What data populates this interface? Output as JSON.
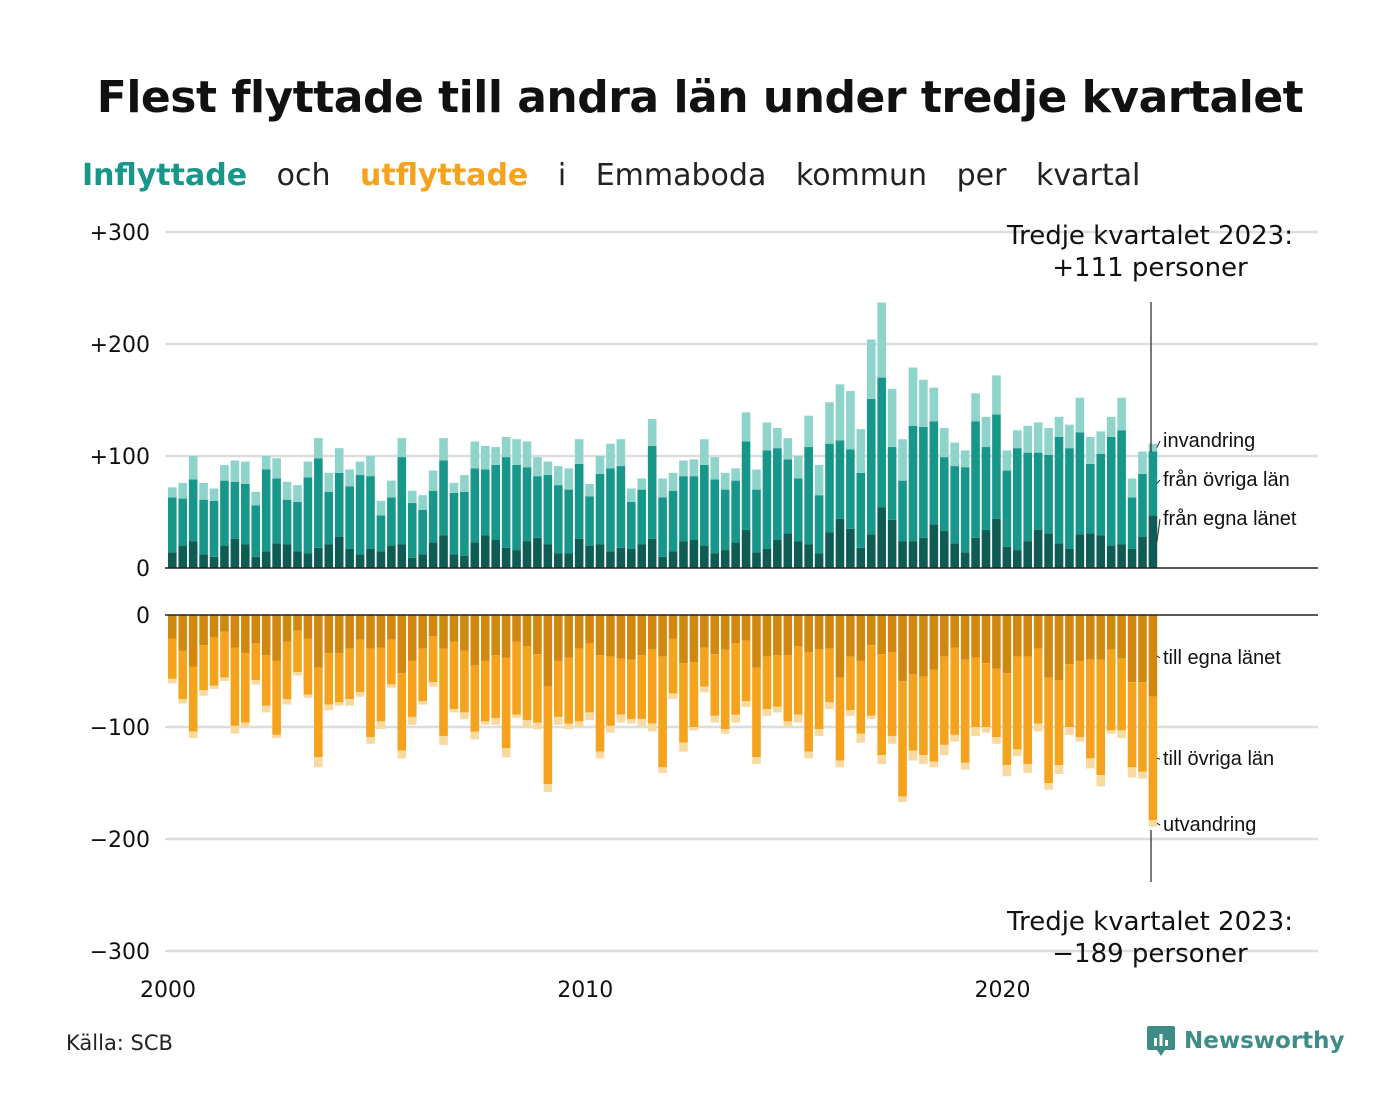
{
  "title": "Flest flyttade till andra län under tredje kvartalet",
  "subtitle": {
    "inflyttade": "Inflyttade",
    "och": "och",
    "utflyttade": "utflyttade",
    "rest": [
      "i",
      "Emmaboda",
      "kommun",
      "per",
      "kvartal"
    ]
  },
  "source": "Källa: SCB",
  "brand": "Newsworthy",
  "colors": {
    "in_egna": "#0f5c55",
    "in_ovriga": "#16978a",
    "in_invandring": "#8fd4cb",
    "out_egna": "#d08811",
    "out_ovriga": "#f5a31c",
    "out_utvandring": "#f8d9a0",
    "grid": "#dddddd",
    "brand": "#3e8c86"
  },
  "chart_data": {
    "type": "bar",
    "stacked": true,
    "x_axis": {
      "label": "",
      "ticks": [
        "2000",
        "2010",
        "2020"
      ],
      "range": [
        "2000 Q1",
        "2023 Q3"
      ]
    },
    "y_axis_top": {
      "label": "",
      "ticks": [
        "+300",
        "+200",
        "+100",
        "0"
      ],
      "ylim": [
        0,
        300
      ]
    },
    "y_axis_bottom": {
      "label": "",
      "ticks": [
        "0",
        "−100",
        "−200",
        "−300"
      ],
      "ylim": [
        -300,
        0
      ]
    },
    "grid": true,
    "annotations": {
      "top": [
        "Tredje kvartalet 2023:",
        "+111 personer"
      ],
      "bottom": [
        "Tredje kvartalet 2023:",
        "−189 personer"
      ]
    },
    "in_labels": [
      "invandring",
      "från övriga län",
      "från egna länet"
    ],
    "out_labels": [
      "till egna länet",
      "till övriga län",
      "utvandring"
    ],
    "periods": [
      "2000 Q1",
      "2000 Q2",
      "2000 Q3",
      "2000 Q4",
      "2001 Q1",
      "2001 Q2",
      "2001 Q3",
      "2001 Q4",
      "2002 Q1",
      "2002 Q2",
      "2002 Q3",
      "2002 Q4",
      "2003 Q1",
      "2003 Q2",
      "2003 Q3",
      "2003 Q4",
      "2004 Q1",
      "2004 Q2",
      "2004 Q3",
      "2004 Q4",
      "2005 Q1",
      "2005 Q2",
      "2005 Q3",
      "2005 Q4",
      "2006 Q1",
      "2006 Q2",
      "2006 Q3",
      "2006 Q4",
      "2007 Q1",
      "2007 Q2",
      "2007 Q3",
      "2007 Q4",
      "2008 Q1",
      "2008 Q2",
      "2008 Q3",
      "2008 Q4",
      "2009 Q1",
      "2009 Q2",
      "2009 Q3",
      "2009 Q4",
      "2010 Q1",
      "2010 Q2",
      "2010 Q3",
      "2010 Q4",
      "2011 Q1",
      "2011 Q2",
      "2011 Q3",
      "2011 Q4",
      "2012 Q1",
      "2012 Q2",
      "2012 Q3",
      "2012 Q4",
      "2013 Q1",
      "2013 Q2",
      "2013 Q3",
      "2013 Q4",
      "2014 Q1",
      "2014 Q2",
      "2014 Q3",
      "2014 Q4",
      "2015 Q1",
      "2015 Q2",
      "2015 Q3",
      "2015 Q4",
      "2016 Q1",
      "2016 Q2",
      "2016 Q3",
      "2016 Q4",
      "2017 Q1",
      "2017 Q2",
      "2017 Q3",
      "2017 Q4",
      "2018 Q1",
      "2018 Q2",
      "2018 Q3",
      "2018 Q4",
      "2019 Q1",
      "2019 Q2",
      "2019 Q3",
      "2019 Q4",
      "2020 Q1",
      "2020 Q2",
      "2020 Q3",
      "2020 Q4",
      "2021 Q1",
      "2021 Q2",
      "2021 Q3",
      "2021 Q4",
      "2022 Q1",
      "2022 Q2",
      "2022 Q3",
      "2022 Q4",
      "2023 Q1",
      "2023 Q2",
      "2023 Q3"
    ],
    "inflyttade_totals": [
      72,
      76,
      100,
      76,
      71,
      92,
      96,
      95,
      68,
      100,
      98,
      77,
      74,
      95,
      116,
      85,
      107,
      88,
      95,
      100,
      60,
      78,
      116,
      69,
      65,
      87,
      116,
      76,
      83,
      113,
      109,
      108,
      117,
      115,
      113,
      99,
      95,
      91,
      89,
      115,
      75,
      100,
      111,
      115,
      71,
      80,
      133,
      80,
      85,
      96,
      97,
      115,
      99,
      85,
      89,
      139,
      88,
      130,
      125,
      116,
      100,
      136,
      92,
      148,
      164,
      158,
      124,
      204,
      237,
      160,
      115,
      179,
      168,
      161,
      125,
      112,
      105,
      156,
      135,
      172,
      105,
      123,
      127,
      130,
      125,
      135,
      128,
      152,
      117,
      122,
      135,
      152,
      80,
      104,
      111
    ],
    "utflyttade_totals": [
      -61,
      -79,
      -110,
      -72,
      -66,
      -59,
      -106,
      -100,
      -62,
      -87,
      -110,
      -80,
      -54,
      -74,
      -136,
      -85,
      -81,
      -81,
      -73,
      -115,
      -102,
      -65,
      -128,
      -98,
      -80,
      -64,
      -116,
      -87,
      -93,
      -111,
      -98,
      -98,
      -127,
      -92,
      -101,
      -102,
      -158,
      -98,
      -102,
      -100,
      -94,
      -128,
      -105,
      -96,
      -97,
      -99,
      -104,
      -141,
      -75,
      -122,
      -103,
      -69,
      -96,
      -106,
      -96,
      -82,
      -133,
      -90,
      -87,
      -100,
      -96,
      -128,
      -108,
      -84,
      -136,
      -90,
      -114,
      -93,
      -133,
      -115,
      -167,
      -130,
      -133,
      -136,
      -125,
      -113,
      -138,
      -108,
      -105,
      -115,
      -144,
      -126,
      -141,
      -104,
      -156,
      -142,
      -107,
      -113,
      -137,
      -153,
      -106,
      -110,
      -145,
      -146,
      -189
    ],
    "highlight": {
      "period": "2023 Q3",
      "in": {
        "från egna länet": 47,
        "från övriga län": 57,
        "invandring": 7
      },
      "out": {
        "till egna länet": -73,
        "till övriga län": -110,
        "utvandring": -6
      }
    }
  }
}
